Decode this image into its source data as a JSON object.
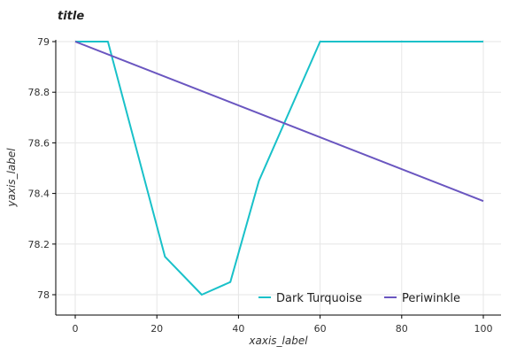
{
  "chart_data": {
    "type": "line",
    "title": "title",
    "xlabel": "xaxis_label",
    "ylabel": "yaxis_label",
    "xlim": [
      0,
      100
    ],
    "ylim": [
      78.0,
      79.0
    ],
    "xticks": [
      0,
      20,
      40,
      60,
      80,
      100
    ],
    "yticks": [
      78.0,
      78.2,
      78.4,
      78.6,
      78.8,
      79.0
    ],
    "xtick_labels": [
      "0",
      "20",
      "40",
      "60",
      "80",
      "100"
    ],
    "ytick_labels": [
      "78",
      "78.2",
      "78.4",
      "78.6",
      "78.8",
      "79"
    ],
    "grid": true,
    "legend_position": "bottom-right",
    "series": [
      {
        "name": "Dark Turquoise",
        "color": "#19c1c9",
        "x": [
          0,
          8,
          22,
          31,
          38,
          45,
          60,
          100
        ],
        "y": [
          79.0,
          79.0,
          78.15,
          78.0,
          78.05,
          78.45,
          79.0,
          79.0
        ]
      },
      {
        "name": "Periwinkle",
        "color": "#6a56c0",
        "x": [
          0,
          100
        ],
        "y": [
          79.0,
          78.37
        ]
      }
    ]
  }
}
